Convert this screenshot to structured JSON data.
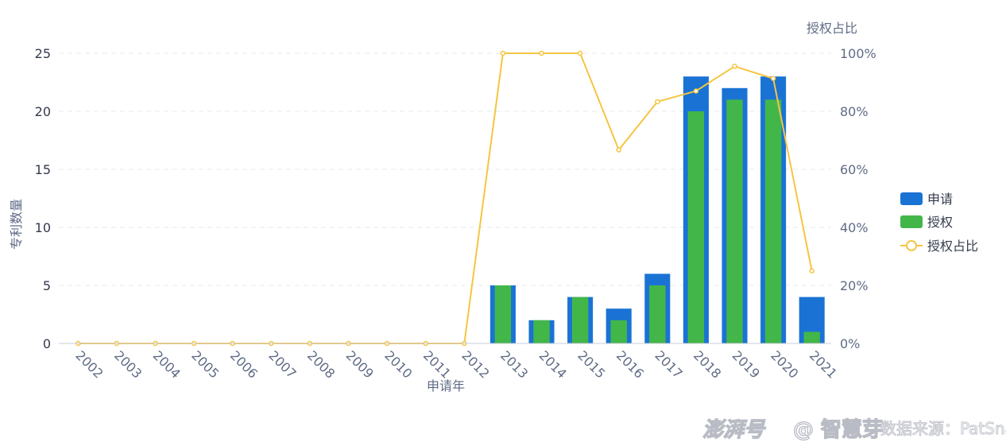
{
  "chart_data": {
    "type": "bar",
    "categories": [
      "2002",
      "2003",
      "2004",
      "2005",
      "2006",
      "2007",
      "2008",
      "2009",
      "2010",
      "2011",
      "2012",
      "2013",
      "2014",
      "2015",
      "2016",
      "2017",
      "2018",
      "2019",
      "2020",
      "2021"
    ],
    "series": [
      {
        "name": "申请",
        "type": "bar",
        "values": [
          0,
          0,
          0,
          0,
          0,
          0,
          0,
          0,
          0,
          0,
          0,
          5,
          2,
          4,
          3,
          6,
          23,
          22,
          23,
          4
        ],
        "color": "#1a73d4"
      },
      {
        "name": "授权",
        "type": "bar",
        "values": [
          0,
          0,
          0,
          0,
          0,
          0,
          0,
          0,
          0,
          0,
          0,
          5,
          2,
          4,
          2,
          5,
          20,
          21,
          21,
          1
        ],
        "color": "#43b649"
      },
      {
        "name": "授权占比",
        "type": "line",
        "axis": "right",
        "values": [
          0,
          0,
          0,
          0,
          0,
          0,
          0,
          0,
          0,
          0,
          0,
          100,
          100,
          100,
          66.7,
          83.3,
          87,
          95.5,
          91.3,
          25
        ],
        "color": "#f5c542"
      }
    ],
    "xlabel": "申请年",
    "ylabel": "专利数量",
    "ylabel_right": "授权占比",
    "ylim": [
      0,
      25
    ],
    "ylim_right": [
      0,
      100
    ],
    "yticks": [
      0,
      5,
      10,
      15,
      20,
      25
    ],
    "yticks_right": [
      "0%",
      "20%",
      "40%",
      "60%",
      "80%",
      "100%"
    ],
    "grid": true,
    "legend_position": "right"
  },
  "watermark": {
    "logo_text": "澎湃号",
    "account_text": "@ 智慧芽",
    "source_text": "数据来源：PatSnap"
  }
}
